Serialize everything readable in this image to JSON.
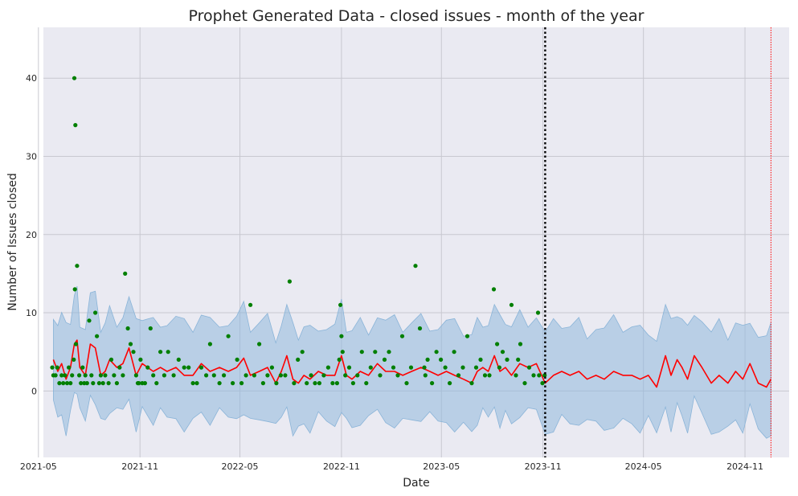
{
  "chart_data": {
    "type": "line",
    "title": "Prophet Generated Data - closed issues - month of the year",
    "xlabel": "Date",
    "ylabel": "Number of Issues closed",
    "xlim": [
      "2021-05-10",
      "2025-01-20"
    ],
    "ylim": [
      -8.5,
      46.5
    ],
    "grid": true,
    "background": "#eaeaf2",
    "x_ticks": [
      "2021-05",
      "2021-11",
      "2022-05",
      "2022-11",
      "2023-05",
      "2023-11",
      "2024-05",
      "2024-11"
    ],
    "y_ticks": [
      0,
      10,
      20,
      30,
      40
    ],
    "colors": {
      "forecast": "#ff0000",
      "interval": "#8fb8dc",
      "actual": "#007f00",
      "cutoff_line": "#000000",
      "end_line": "#ff0000"
    },
    "vertical_lines": [
      {
        "x": "2023-11-05",
        "style": "dotted",
        "color": "#000000"
      },
      {
        "x": "2024-12-18",
        "style": "dotted",
        "color": "#ff0000"
      }
    ],
    "forecast_interval_halfwidth": 6.2,
    "series": [
      {
        "kind": "forecast",
        "x": [
          "2021-05-28",
          "2021-06-05",
          "2021-06-12",
          "2021-06-20",
          "2021-06-28",
          "2021-07-05",
          "2021-07-10",
          "2021-07-15",
          "2021-07-25",
          "2021-08-03",
          "2021-08-12",
          "2021-08-22",
          "2021-08-30",
          "2021-09-07",
          "2021-09-20",
          "2021-10-01",
          "2021-10-12",
          "2021-10-25",
          "2021-11-05",
          "2021-11-15",
          "2021-11-25",
          "2021-12-08",
          "2021-12-20",
          "2022-01-05",
          "2022-01-20",
          "2022-02-05",
          "2022-02-20",
          "2022-03-08",
          "2022-03-25",
          "2022-04-10",
          "2022-04-25",
          "2022-05-08",
          "2022-05-20",
          "2022-06-05",
          "2022-06-20",
          "2022-07-05",
          "2022-07-15",
          "2022-07-25",
          "2022-08-05",
          "2022-08-15",
          "2022-08-25",
          "2022-09-05",
          "2022-09-20",
          "2022-10-05",
          "2022-10-20",
          "2022-11-01",
          "2022-11-10",
          "2022-11-20",
          "2022-12-05",
          "2022-12-20",
          "2023-01-05",
          "2023-01-20",
          "2023-02-05",
          "2023-02-20",
          "2023-03-08",
          "2023-03-25",
          "2023-04-10",
          "2023-04-25",
          "2023-05-10",
          "2023-05-25",
          "2023-06-10",
          "2023-06-25",
          "2023-07-05",
          "2023-07-15",
          "2023-07-25",
          "2023-08-05",
          "2023-08-15",
          "2023-08-25",
          "2023-09-05",
          "2023-09-20",
          "2023-10-05",
          "2023-10-20",
          "2023-11-05",
          "2023-11-20",
          "2023-12-05",
          "2023-12-20",
          "2024-01-05",
          "2024-01-20",
          "2024-02-05",
          "2024-02-20",
          "2024-03-08",
          "2024-03-25",
          "2024-04-10",
          "2024-04-25",
          "2024-05-10",
          "2024-05-25",
          "2024-06-10",
          "2024-06-20",
          "2024-07-01",
          "2024-07-10",
          "2024-07-20",
          "2024-08-01",
          "2024-08-15",
          "2024-09-01",
          "2024-09-15",
          "2024-10-01",
          "2024-10-15",
          "2024-10-28",
          "2024-11-10",
          "2024-11-25",
          "2024-12-10",
          "2024-12-18"
        ],
        "y": [
          4,
          2.5,
          3.5,
          1.5,
          3,
          6,
          6.5,
          3,
          2,
          6,
          5.5,
          2,
          2.5,
          4,
          3,
          3.5,
          5.5,
          2,
          3.5,
          3,
          2.5,
          3,
          2.5,
          3,
          2,
          2,
          3.5,
          2.5,
          3,
          2.5,
          3,
          4.2,
          2,
          2.5,
          3,
          1,
          2.5,
          4.5,
          1.5,
          1,
          2,
          1.5,
          2.5,
          2,
          2,
          4.5,
          2,
          1.5,
          2.5,
          2,
          3.5,
          2.5,
          2.5,
          2,
          2.5,
          3,
          2.5,
          2,
          2.5,
          2,
          1.5,
          1,
          2.5,
          3,
          2.5,
          4.5,
          2.5,
          3,
          2,
          3.5,
          3,
          3.5,
          1,
          2,
          2.5,
          2,
          2.5,
          1.5,
          2,
          1.5,
          2.5,
          2,
          2,
          1.5,
          2,
          0.5,
          4.5,
          2,
          4,
          3,
          1.5,
          4.5,
          3,
          1,
          2,
          1,
          2.5,
          1.5,
          3.5,
          1,
          0.5,
          1.5
        ]
      },
      {
        "kind": "actual",
        "x": [
          "2021-05-26",
          "2021-05-28",
          "2021-06-01",
          "2021-06-04",
          "2021-06-08",
          "2021-06-12",
          "2021-06-15",
          "2021-06-18",
          "2021-06-22",
          "2021-06-25",
          "2021-06-28",
          "2021-07-01",
          "2021-07-04",
          "2021-07-05",
          "2021-07-06",
          "2021-07-07",
          "2021-07-08",
          "2021-07-10",
          "2021-07-14",
          "2021-07-17",
          "2021-07-20",
          "2021-07-23",
          "2021-07-25",
          "2021-07-28",
          "2021-08-01",
          "2021-08-05",
          "2021-08-08",
          "2021-08-12",
          "2021-08-15",
          "2021-08-19",
          "2021-08-22",
          "2021-08-26",
          "2021-08-30",
          "2021-09-05",
          "2021-09-10",
          "2021-09-15",
          "2021-09-20",
          "2021-09-25",
          "2021-10-01",
          "2021-10-05",
          "2021-10-10",
          "2021-10-15",
          "2021-10-20",
          "2021-10-25",
          "2021-10-28",
          "2021-10-30",
          "2021-11-02",
          "2021-11-05",
          "2021-11-10",
          "2021-11-15",
          "2021-11-20",
          "2021-11-25",
          "2021-12-01",
          "2021-12-08",
          "2021-12-15",
          "2021-12-22",
          "2022-01-01",
          "2022-01-10",
          "2022-01-20",
          "2022-01-28",
          "2022-02-05",
          "2022-02-12",
          "2022-02-20",
          "2022-03-01",
          "2022-03-08",
          "2022-03-15",
          "2022-03-25",
          "2022-04-02",
          "2022-04-10",
          "2022-04-18",
          "2022-04-26",
          "2022-05-04",
          "2022-05-12",
          "2022-05-20",
          "2022-05-27",
          "2022-06-05",
          "2022-06-12",
          "2022-06-20",
          "2022-06-28",
          "2022-07-06",
          "2022-07-14",
          "2022-07-22",
          "2022-07-30",
          "2022-08-07",
          "2022-08-14",
          "2022-08-22",
          "2022-08-30",
          "2022-09-07",
          "2022-09-14",
          "2022-09-22",
          "2022-09-30",
          "2022-10-08",
          "2022-10-16",
          "2022-10-24",
          "2022-10-28",
          "2022-10-30",
          "2022-11-01",
          "2022-11-03",
          "2022-11-08",
          "2022-11-15",
          "2022-11-22",
          "2022-11-30",
          "2022-12-08",
          "2022-12-16",
          "2022-12-24",
          "2023-01-01",
          "2023-01-10",
          "2023-01-18",
          "2023-01-26",
          "2023-02-03",
          "2023-02-11",
          "2023-02-19",
          "2023-02-27",
          "2023-03-07",
          "2023-03-15",
          "2023-03-23",
          "2023-03-31",
          "2023-04-02",
          "2023-04-06",
          "2023-04-14",
          "2023-04-22",
          "2023-04-30",
          "2023-05-08",
          "2023-05-16",
          "2023-05-24",
          "2023-06-01",
          "2023-06-09",
          "2023-06-17",
          "2023-06-25",
          "2023-07-03",
          "2023-07-11",
          "2023-07-19",
          "2023-07-27",
          "2023-08-04",
          "2023-08-10",
          "2023-08-14",
          "2023-08-20",
          "2023-08-28",
          "2023-09-05",
          "2023-09-13",
          "2023-09-17",
          "2023-09-21",
          "2023-09-29",
          "2023-10-07",
          "2023-10-15",
          "2023-10-23",
          "2023-10-25",
          "2023-10-31",
          "2023-11-04"
        ],
        "y": [
          3,
          2,
          2,
          3,
          1,
          2,
          1,
          2,
          1,
          3,
          1,
          2,
          4,
          40,
          13,
          34,
          6,
          16,
          2,
          1,
          3,
          1,
          2,
          1,
          9,
          2,
          1,
          10,
          7,
          1,
          2,
          1,
          2,
          1,
          4,
          2,
          1,
          3,
          2,
          15,
          8,
          6,
          5,
          2,
          1,
          1,
          4,
          1,
          1,
          3,
          8,
          2,
          1,
          5,
          2,
          5,
          2,
          4,
          3,
          3,
          1,
          1,
          3,
          2,
          6,
          2,
          1,
          2,
          7,
          1,
          4,
          1,
          2,
          11,
          2,
          6,
          1,
          2,
          3,
          1,
          2,
          2,
          14,
          1,
          4,
          5,
          1,
          2,
          1,
          1,
          2,
          3,
          1,
          1,
          4,
          11,
          7,
          5,
          2,
          3,
          1,
          2,
          5,
          1,
          3,
          5,
          2,
          4,
          5,
          3,
          2,
          7,
          1,
          3,
          16,
          8,
          3,
          2,
          4,
          1,
          5,
          4,
          3,
          1,
          5,
          2,
          3,
          7,
          1,
          3,
          4,
          2,
          2,
          13,
          6,
          3,
          5,
          4,
          11,
          2,
          4,
          6,
          1,
          3,
          2,
          10,
          2,
          1,
          2
        ]
      }
    ]
  }
}
